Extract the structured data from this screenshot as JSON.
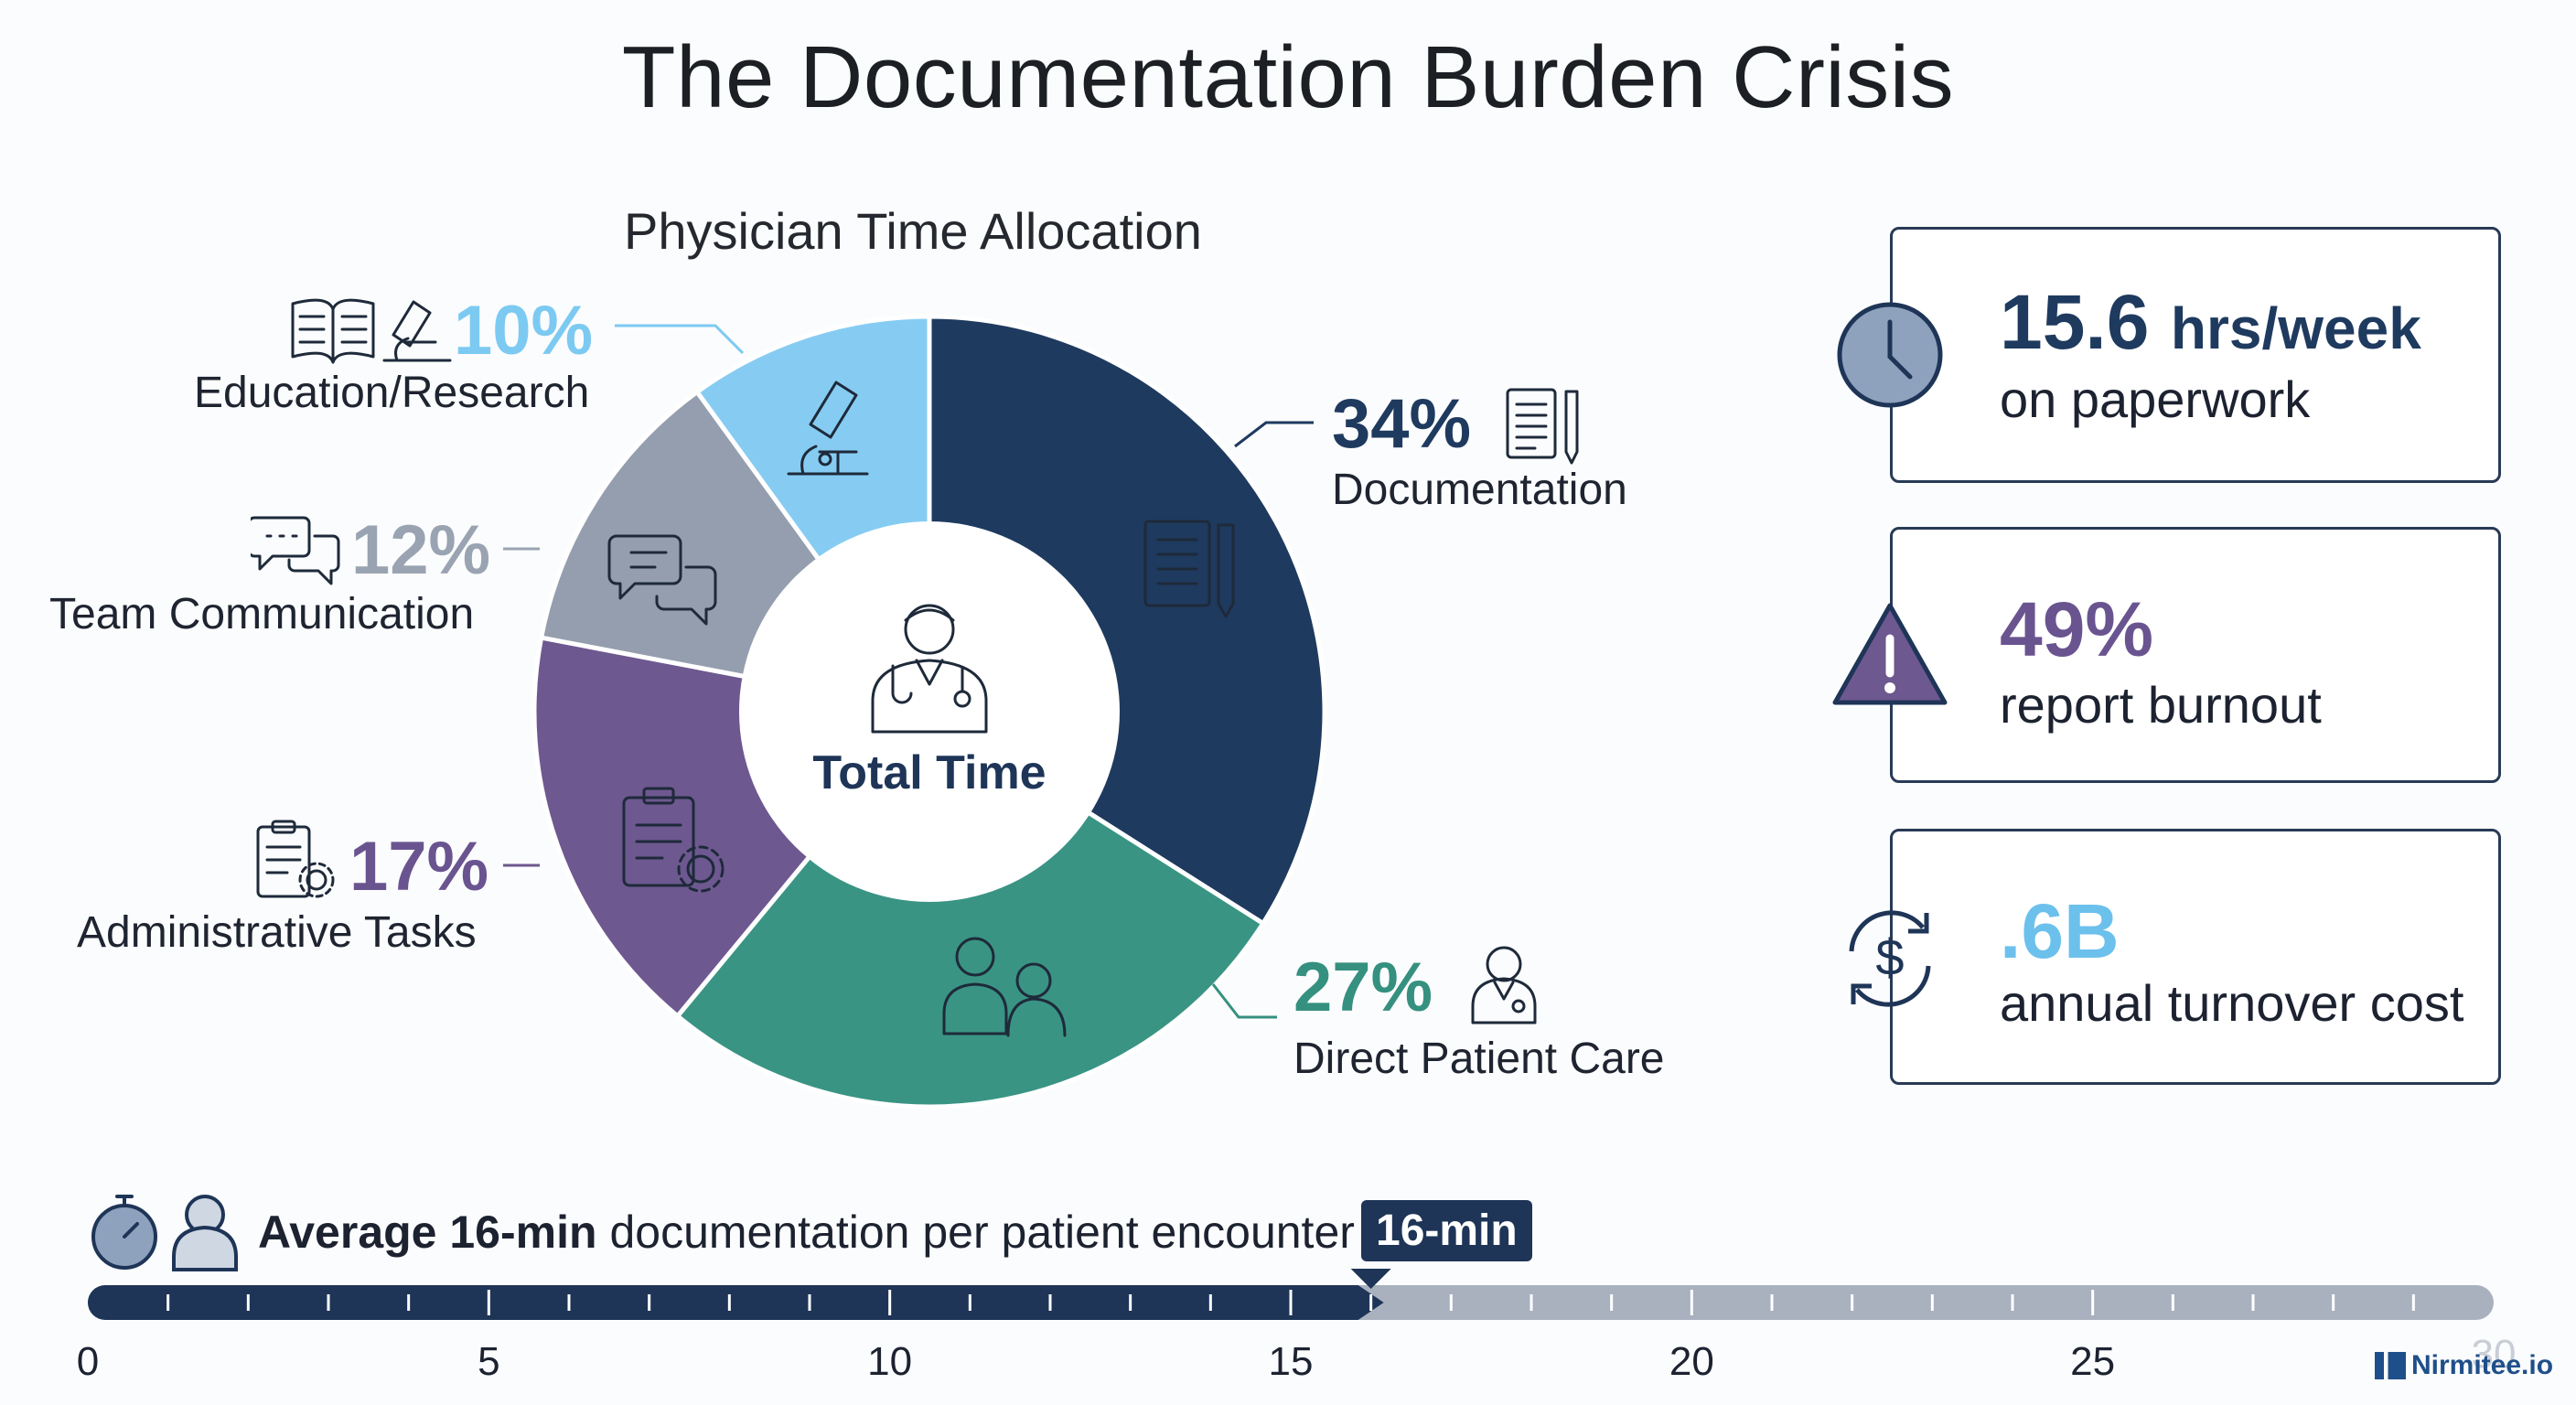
{
  "title": "The Documentation Burden Crisis",
  "chart_data": {
    "type": "pie",
    "title": "Physician Time Allocation",
    "center_label": "Total Time",
    "slices": [
      {
        "label": "Documentation",
        "value": 34,
        "display": "34%",
        "color": "#1f3a5f",
        "icon": "document-pen-icon"
      },
      {
        "label": "Direct Patient Care",
        "value": 27,
        "display": "27%",
        "color": "#3a9484",
        "icon": "patient-care-icon"
      },
      {
        "label": "Administrative Tasks",
        "value": 17,
        "display": "17%",
        "color": "#6e5890",
        "icon": "clipboard-gear-icon"
      },
      {
        "label": "Team Communication",
        "value": 12,
        "display": "12%",
        "color": "#949eae",
        "icon": "chat-bubbles-icon"
      },
      {
        "label": "Education/Research",
        "value": 10,
        "display": "10%",
        "color": "#86ccf2",
        "icon": "microscope-icon"
      }
    ]
  },
  "stats": [
    {
      "value": "15.6",
      "unit": "hrs/week",
      "text": "on paperwork",
      "icon": "clock-icon",
      "color": "#1f3a5f"
    },
    {
      "value": "49%",
      "unit": "",
      "text": "report burnout",
      "icon": "warning-icon",
      "color": "#6e5890"
    },
    {
      "value": ".6B",
      "unit": "",
      "text": "annual turnover cost",
      "icon": "dollar-cycle-icon",
      "color": "#6cc0ec"
    }
  ],
  "timeline": {
    "bold_text": "Average 16-min",
    "rest_text": "documentation per patient encounter",
    "marker_value": 16,
    "marker_label": "16-min",
    "max": 30,
    "ticks": [
      "0",
      "5",
      "10",
      "15",
      "20",
      "25",
      "30"
    ],
    "fill_color": "#1e3557",
    "track_color": "#a9b1bf"
  },
  "brand": "Nirmitee.io"
}
